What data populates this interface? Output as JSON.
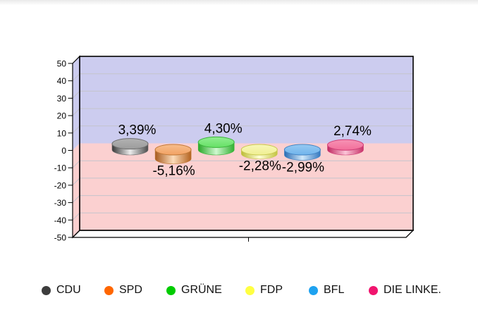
{
  "page": {
    "background": "#ffffff"
  },
  "chart_data": {
    "type": "bar",
    "style": "3d-cylinder-discs",
    "title": "",
    "categories": [
      "CDU",
      "SPD",
      "GRÜNE",
      "FDP",
      "BFL",
      "DIE LINKE."
    ],
    "series_ids": [
      "cdu",
      "spd",
      "gruene",
      "fdp",
      "bfl",
      "die-linke"
    ],
    "values": [
      3.39,
      -5.16,
      4.3,
      -2.28,
      -2.99,
      2.74
    ],
    "value_labels": [
      "3,39%",
      "-5,16%",
      "4,30%",
      "-2,28%",
      "-2,99%",
      "2,74%"
    ],
    "ylim": [
      -50,
      50
    ],
    "ytick_step": 10,
    "yticks": [
      50,
      40,
      30,
      20,
      10,
      0,
      -10,
      -20,
      -30,
      -40,
      -50
    ],
    "grid": true,
    "legend_position": "bottom",
    "plot_bg_positive": "#ccccef",
    "plot_bg_negative": "#fbd0d0",
    "gridline_color": "#c4c4cc",
    "axis_color": "#000000",
    "label_color": "#000000",
    "legend_colors": [
      "#3d3d3d",
      "#ff6600",
      "#00cc00",
      "#ffff42",
      "#1ea2f0",
      "#f0146e"
    ],
    "series_colors": [
      {
        "top": "#9c9c9c",
        "top_light": "#b2b2b2",
        "side_dark": "#383838",
        "side_light": "#ececec",
        "side_dark2": "#4c4c4c",
        "rim": "#6e6e6e"
      },
      {
        "top": "#f2a263",
        "top_light": "#f7bd8c",
        "side_dark": "#a85a1e",
        "side_light": "#fcdcba",
        "side_dark2": "#b4621e",
        "rim": "#c07838"
      },
      {
        "top": "#66e066",
        "top_light": "#90ee90",
        "side_dark": "#28a828",
        "side_light": "#d0f8d0",
        "side_dark2": "#30b030",
        "rim": "#3cb43c"
      },
      {
        "top": "#f0ef92",
        "top_light": "#f8f7b8",
        "side_dark": "#bcbc34",
        "side_light": "#ffffd8",
        "side_dark2": "#c4c440",
        "rim": "#c8c850"
      },
      {
        "top": "#70b4ec",
        "top_light": "#96c9f2",
        "side_dark": "#2a6cb4",
        "side_light": "#d0e8fa",
        "side_dark2": "#3478c0",
        "rim": "#4484c4"
      },
      {
        "top": "#f26e9a",
        "top_light": "#f692b4",
        "side_dark": "#c02860",
        "side_light": "#fcc6d8",
        "side_dark2": "#c83068",
        "rim": "#d04078"
      }
    ]
  }
}
